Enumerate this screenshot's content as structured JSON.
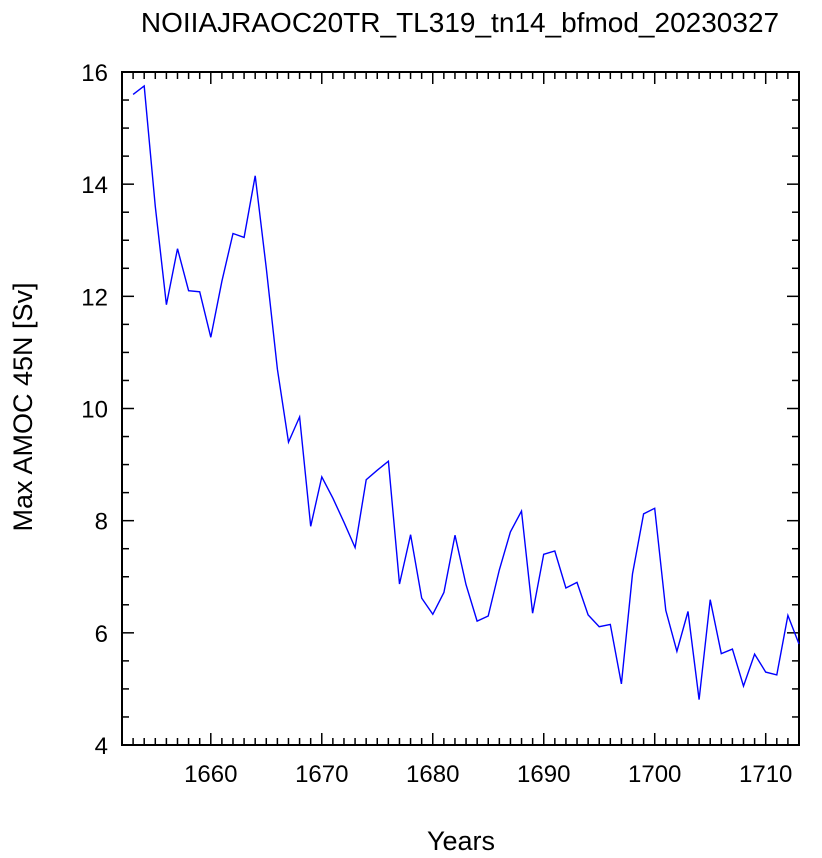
{
  "chart_data": {
    "type": "line",
    "title": "NOIIAJRAOC20TR_TL319_tn14_bfmod_20230327",
    "xlabel": "Years",
    "ylabel": "Max AMOC 45N [Sv]",
    "xlim": [
      1652,
      1713
    ],
    "ylim": [
      4,
      16
    ],
    "xticks": [
      1660,
      1670,
      1680,
      1690,
      1700,
      1710
    ],
    "yticks": [
      4,
      6,
      8,
      10,
      12,
      14,
      16
    ],
    "line_color": "#0000ff",
    "series": [
      {
        "x": [
          1653,
          1654,
          1655,
          1656,
          1657,
          1658,
          1659,
          1660,
          1661,
          1662,
          1663,
          1664,
          1665,
          1666,
          1667,
          1668,
          1669,
          1670,
          1671,
          1672,
          1673,
          1674,
          1675,
          1676,
          1677,
          1678,
          1679,
          1680,
          1681,
          1682,
          1683,
          1684,
          1685,
          1686,
          1687,
          1688,
          1689,
          1690,
          1691,
          1692,
          1693,
          1694,
          1695,
          1696,
          1697,
          1698,
          1699,
          1700,
          1701,
          1702,
          1703,
          1704,
          1705,
          1706,
          1707,
          1708,
          1709,
          1710,
          1711,
          1712,
          1713
        ],
        "values": [
          15.6,
          15.75,
          13.6,
          11.85,
          12.85,
          12.1,
          12.08,
          11.27,
          12.27,
          13.12,
          13.05,
          14.15,
          12.5,
          10.7,
          9.4,
          9.85,
          7.9,
          8.78,
          8.4,
          7.97,
          7.52,
          8.73,
          8.9,
          9.06,
          6.87,
          7.75,
          6.62,
          6.33,
          6.72,
          7.74,
          6.86,
          6.21,
          6.3,
          7.12,
          7.8,
          8.17,
          6.35,
          7.4,
          7.46,
          6.8,
          6.9,
          6.32,
          6.11,
          6.15,
          5.09,
          7.05,
          8.12,
          8.22,
          6.4,
          5.67,
          6.38,
          4.81,
          6.59,
          5.63,
          5.71,
          5.05,
          5.62,
          5.3,
          5.25,
          6.31,
          5.8
        ]
      }
    ]
  }
}
